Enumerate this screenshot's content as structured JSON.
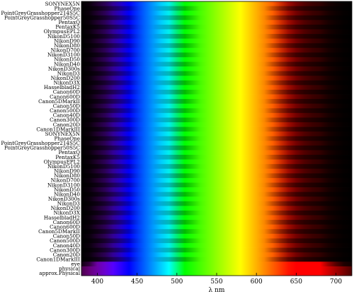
{
  "chart_data": {
    "type": "heatmap",
    "title": "",
    "xlabel": "λ   nm",
    "xlim": [
      380,
      720
    ],
    "x_ticks": [
      400,
      450,
      500,
      550,
      600,
      650,
      700
    ],
    "rows": [
      "SONYNEX5N",
      "PhaseOne",
      "PointGreyGrasshopper214S5C",
      "PointGreyGrasshopper50S5C",
      "PentaxQ",
      "PentaxK5",
      "OlympusEPL2",
      "NikonD5100",
      "NikonD90",
      "NikonD80",
      "NikonD700",
      "NikonD3100",
      "NikonD50",
      "NikonD40",
      "NikonD300s",
      "NikonD3",
      "NikonD200",
      "NikonD3X",
      "HasselbladH2",
      "Canon60D",
      "Canon600D",
      "Canon5DMarkII",
      "Canon50D",
      "Canon500D",
      "Canon40D",
      "Canon300D",
      "Canon20D",
      "Canon1DMarkIII",
      "SONYNEX5N",
      "PhaseOne",
      "PointGreyGrasshopper214S5C",
      "PointGreyGrasshopper50S5C",
      "PentaxQ",
      "PentaxK5",
      "OlympusEPL2",
      "NikonD5100",
      "NikonD90",
      "NikonD80",
      "NikonD700",
      "NikonD3100",
      "NikonD50",
      "NikonD40",
      "NikonD300s",
      "NikonD3",
      "NikonD200",
      "NikonD3X",
      "HasselbladH2",
      "Canon60D",
      "Canon600D",
      "Canon5DMarkII",
      "Canon50D",
      "Canon500D",
      "Canon40D",
      "Canon300D",
      "Canon20D",
      "Canon1DMarkIII",
      "eye",
      "physical",
      "approx.Physical"
    ]
  }
}
